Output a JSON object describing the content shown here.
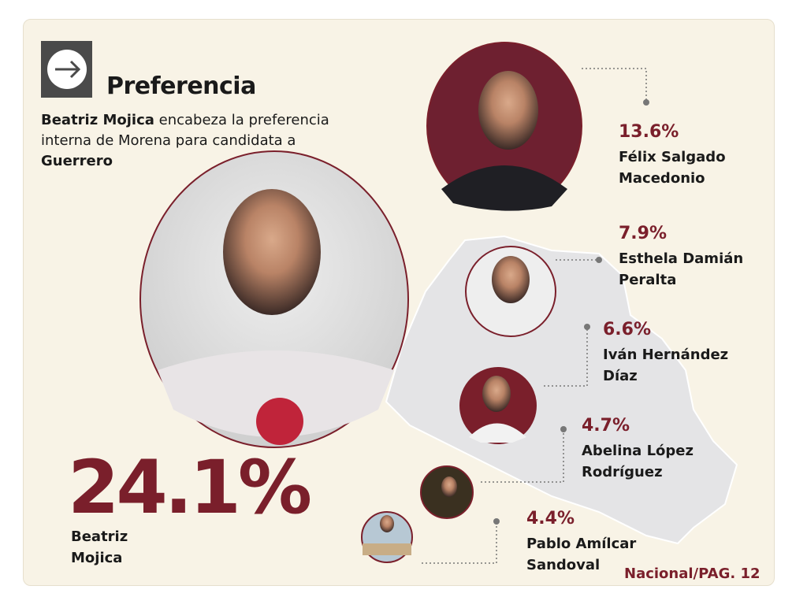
{
  "header": {
    "title": "Preferencia",
    "subtitle": [
      {
        "text": "Beatriz Mojica",
        "bold": true
      },
      {
        "text": " encabeza la preferencia interna de Morena para candidata a ",
        "bold": false
      },
      {
        "text": "Guerrero",
        "bold": true
      }
    ]
  },
  "lead": {
    "percent": "24.1%",
    "name_lines": [
      "Beatriz",
      "Mojica"
    ]
  },
  "candidates": [
    {
      "percent": "13.6%",
      "name_lines": [
        "Félix Salgado",
        "Macedonio"
      ]
    },
    {
      "percent": "7.9%",
      "name_lines": [
        "Esthela Damián",
        "Peralta"
      ]
    },
    {
      "percent": "6.6%",
      "name_lines": [
        "Iván Hernández",
        "Díaz"
      ]
    },
    {
      "percent": "4.7%",
      "name_lines": [
        "Abelina López",
        "Rodríguez"
      ]
    },
    {
      "percent": "4.4%",
      "name_lines": [
        "Pablo Amílcar",
        "Sandoval"
      ]
    }
  ],
  "footer": "Nacional/PAG. 12"
}
